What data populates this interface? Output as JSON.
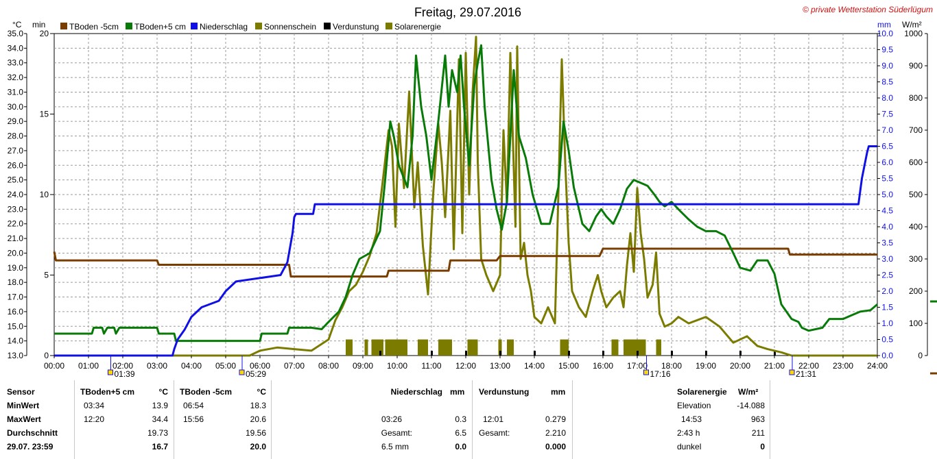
{
  "chart_data": {
    "type": "line",
    "title": "Freitag, 29.07.2016",
    "copyright": "© private Wetterstation Süderlügum",
    "x_range_hours": [
      0,
      24
    ],
    "x_ticks": [
      "00:00",
      "01:00",
      "02:00",
      "03:00",
      "04:00",
      "05:00",
      "06:00",
      "07:00",
      "08:00",
      "09:00",
      "10:00",
      "11:00",
      "12:00",
      "13:00",
      "14:00",
      "15:00",
      "16:00",
      "17:00",
      "18:00",
      "19:00",
      "20:00",
      "21:00",
      "22:00",
      "23:00",
      "24:00"
    ],
    "axes": {
      "temp": {
        "unit": "°C",
        "range": [
          13,
          35
        ],
        "step": 1
      },
      "min": {
        "unit": "min",
        "range": [
          0,
          20
        ],
        "ticks": [
          "0",
          "5",
          "10",
          "15",
          "20"
        ]
      },
      "mm": {
        "unit": "mm",
        "range": [
          0,
          10
        ],
        "step": 0.5
      },
      "wm2": {
        "unit": "W/m²",
        "range": [
          0,
          1000
        ],
        "step": 100
      }
    },
    "grid": true,
    "legend": [
      {
        "name": "TBoden -5cm",
        "color": "#7a3d00"
      },
      {
        "name": "TBoden+5 cm",
        "color": "#087a08"
      },
      {
        "name": "Niederschlag",
        "color": "#1010e6"
      },
      {
        "name": "Sonnenschein",
        "color": "#7b7b00"
      },
      {
        "name": "Verdunstung",
        "color": "#000000"
      },
      {
        "name": "Solarenergie",
        "color": "#7b7b00"
      }
    ],
    "sun_markers": [
      {
        "label": "01:39",
        "hour": 1.65
      },
      {
        "label": "05:29",
        "hour": 5.48
      },
      {
        "label": "17:16",
        "hour": 17.27
      },
      {
        "label": "21:31",
        "hour": 21.52
      }
    ],
    "series": [
      {
        "name": "TBoden -5cm",
        "axis": "temp",
        "color": "#7a3d00",
        "points": [
          [
            0,
            20.1
          ],
          [
            0.05,
            19.5
          ],
          [
            3.0,
            19.5
          ],
          [
            3.05,
            19.2
          ],
          [
            6.85,
            19.2
          ],
          [
            6.9,
            18.4
          ],
          [
            9.7,
            18.4
          ],
          [
            9.75,
            18.8
          ],
          [
            11.5,
            18.8
          ],
          [
            11.55,
            19.5
          ],
          [
            12.9,
            19.5
          ],
          [
            13.0,
            19.8
          ],
          [
            15.9,
            19.8
          ],
          [
            16.0,
            20.3
          ],
          [
            21.4,
            20.3
          ],
          [
            21.45,
            19.9
          ],
          [
            24,
            19.9
          ]
        ]
      },
      {
        "name": "TBoden+5 cm",
        "axis": "temp",
        "color": "#087a08",
        "points": [
          [
            0,
            14.5
          ],
          [
            1.1,
            14.5
          ],
          [
            1.15,
            14.9
          ],
          [
            1.4,
            14.9
          ],
          [
            1.45,
            14.5
          ],
          [
            1.55,
            14.9
          ],
          [
            1.75,
            14.9
          ],
          [
            1.8,
            14.5
          ],
          [
            1.9,
            14.9
          ],
          [
            3.0,
            14.9
          ],
          [
            3.05,
            14.5
          ],
          [
            3.5,
            14.5
          ],
          [
            3.55,
            14.0
          ],
          [
            6.0,
            14.0
          ],
          [
            6.05,
            14.5
          ],
          [
            6.8,
            14.5
          ],
          [
            6.85,
            14.9
          ],
          [
            7.5,
            14.9
          ],
          [
            7.8,
            14.8
          ],
          [
            8.0,
            15.3
          ],
          [
            8.3,
            16.0
          ],
          [
            8.5,
            17.0
          ],
          [
            8.7,
            18.5
          ],
          [
            8.9,
            19.6
          ],
          [
            9.2,
            20.0
          ],
          [
            9.5,
            21.5
          ],
          [
            9.65,
            25.0
          ],
          [
            9.8,
            29.0
          ],
          [
            9.9,
            28.0
          ],
          [
            10.05,
            26.0
          ],
          [
            10.3,
            24.5
          ],
          [
            10.45,
            28.0
          ],
          [
            10.55,
            33.5
          ],
          [
            10.7,
            30.0
          ],
          [
            10.85,
            28.0
          ],
          [
            11.0,
            25.0
          ],
          [
            11.2,
            29.0
          ],
          [
            11.4,
            33.5
          ],
          [
            11.5,
            30.0
          ],
          [
            11.6,
            32.5
          ],
          [
            11.75,
            31.0
          ],
          [
            11.85,
            33.5
          ],
          [
            11.95,
            30.0
          ],
          [
            12.1,
            26.0
          ],
          [
            12.25,
            31.5
          ],
          [
            12.35,
            33.0
          ],
          [
            12.45,
            34.2
          ],
          [
            12.55,
            30.0
          ],
          [
            12.75,
            25.0
          ],
          [
            12.9,
            23.0
          ],
          [
            13.05,
            21.6
          ],
          [
            13.2,
            23.5
          ],
          [
            13.4,
            32.5
          ],
          [
            13.55,
            28.0
          ],
          [
            13.75,
            26.5
          ],
          [
            13.95,
            24.0
          ],
          [
            14.2,
            22.0
          ],
          [
            14.45,
            22.0
          ],
          [
            14.7,
            24.5
          ],
          [
            14.85,
            29.0
          ],
          [
            15.0,
            27.0
          ],
          [
            15.15,
            24.5
          ],
          [
            15.4,
            22.0
          ],
          [
            15.6,
            21.5
          ],
          [
            15.8,
            22.5
          ],
          [
            15.95,
            23.0
          ],
          [
            16.1,
            22.5
          ],
          [
            16.3,
            22.0
          ],
          [
            16.5,
            23.0
          ],
          [
            16.7,
            24.4
          ],
          [
            16.9,
            25.0
          ],
          [
            17.1,
            24.8
          ],
          [
            17.3,
            24.6
          ],
          [
            17.5,
            24.0
          ],
          [
            17.65,
            23.5
          ],
          [
            17.8,
            23.2
          ],
          [
            18.0,
            23.5
          ],
          [
            18.2,
            23.0
          ],
          [
            18.5,
            22.3
          ],
          [
            18.75,
            21.8
          ],
          [
            19.0,
            21.5
          ],
          [
            19.3,
            21.5
          ],
          [
            19.55,
            21.2
          ],
          [
            19.8,
            20.0
          ],
          [
            20.0,
            19.0
          ],
          [
            20.3,
            18.8
          ],
          [
            20.5,
            19.5
          ],
          [
            20.8,
            19.5
          ],
          [
            21.0,
            18.6
          ],
          [
            21.2,
            16.5
          ],
          [
            21.5,
            15.5
          ],
          [
            21.7,
            15.3
          ],
          [
            21.8,
            14.9
          ],
          [
            22.0,
            14.7
          ],
          [
            22.4,
            14.9
          ],
          [
            22.6,
            15.5
          ],
          [
            23.0,
            15.5
          ],
          [
            23.2,
            15.7
          ],
          [
            23.5,
            16.0
          ],
          [
            23.8,
            16.1
          ],
          [
            24.0,
            16.5
          ]
        ]
      },
      {
        "name": "Niederschlag",
        "axis": "mm",
        "color": "#1010e6",
        "points": [
          [
            0,
            0
          ],
          [
            3.45,
            0
          ],
          [
            3.5,
            0.2
          ],
          [
            3.6,
            0.5
          ],
          [
            3.8,
            0.8
          ],
          [
            4.0,
            1.2
          ],
          [
            4.3,
            1.5
          ],
          [
            4.8,
            1.7
          ],
          [
            5.0,
            2.0
          ],
          [
            5.3,
            2.3
          ],
          [
            6.6,
            2.5
          ],
          [
            6.8,
            2.9
          ],
          [
            6.95,
            3.8
          ],
          [
            7.0,
            4.3
          ],
          [
            7.05,
            4.4
          ],
          [
            7.55,
            4.4
          ],
          [
            7.6,
            4.7
          ],
          [
            23.45,
            4.7
          ],
          [
            23.55,
            5.5
          ],
          [
            23.7,
            6.3
          ],
          [
            23.75,
            6.5
          ],
          [
            24,
            6.5
          ]
        ]
      },
      {
        "name": "Solarenergie",
        "axis": "wm2",
        "color": "#7b7b00",
        "points": [
          [
            0,
            0
          ],
          [
            5.7,
            0
          ],
          [
            6.0,
            15
          ],
          [
            6.5,
            25
          ],
          [
            7.0,
            20
          ],
          [
            7.5,
            15
          ],
          [
            8.0,
            50
          ],
          [
            8.2,
            110
          ],
          [
            8.4,
            150
          ],
          [
            8.6,
            200
          ],
          [
            8.8,
            220
          ],
          [
            9.0,
            260
          ],
          [
            9.2,
            310
          ],
          [
            9.4,
            380
          ],
          [
            9.6,
            560
          ],
          [
            9.75,
            700
          ],
          [
            9.85,
            650
          ],
          [
            9.95,
            400
          ],
          [
            10.05,
            720
          ],
          [
            10.2,
            520
          ],
          [
            10.35,
            820
          ],
          [
            10.5,
            460
          ],
          [
            10.6,
            600
          ],
          [
            10.75,
            340
          ],
          [
            10.9,
            190
          ],
          [
            11.05,
            500
          ],
          [
            11.2,
            720
          ],
          [
            11.3,
            600
          ],
          [
            11.4,
            430
          ],
          [
            11.55,
            760
          ],
          [
            11.65,
            330
          ],
          [
            11.8,
            920
          ],
          [
            11.9,
            380
          ],
          [
            12.0,
            940
          ],
          [
            12.1,
            500
          ],
          [
            12.2,
            820
          ],
          [
            12.3,
            990
          ],
          [
            12.35,
            600
          ],
          [
            12.45,
            300
          ],
          [
            12.6,
            250
          ],
          [
            12.8,
            200
          ],
          [
            13.0,
            250
          ],
          [
            13.1,
            700
          ],
          [
            13.2,
            470
          ],
          [
            13.3,
            940
          ],
          [
            13.45,
            400
          ],
          [
            13.5,
            960
          ],
          [
            13.6,
            300
          ],
          [
            13.7,
            350
          ],
          [
            13.8,
            250
          ],
          [
            13.9,
            200
          ],
          [
            14.0,
            120
          ],
          [
            14.2,
            100
          ],
          [
            14.4,
            150
          ],
          [
            14.6,
            100
          ],
          [
            14.7,
            500
          ],
          [
            14.8,
            920
          ],
          [
            14.9,
            600
          ],
          [
            15.0,
            350
          ],
          [
            15.1,
            200
          ],
          [
            15.3,
            150
          ],
          [
            15.5,
            120
          ],
          [
            15.7,
            200
          ],
          [
            15.85,
            250
          ],
          [
            15.95,
            200
          ],
          [
            16.1,
            150
          ],
          [
            16.3,
            180
          ],
          [
            16.5,
            200
          ],
          [
            16.6,
            150
          ],
          [
            16.7,
            280
          ],
          [
            16.8,
            380
          ],
          [
            16.9,
            260
          ],
          [
            17.0,
            520
          ],
          [
            17.1,
            380
          ],
          [
            17.2,
            300
          ],
          [
            17.3,
            180
          ],
          [
            17.45,
            220
          ],
          [
            17.55,
            320
          ],
          [
            17.65,
            130
          ],
          [
            17.8,
            90
          ],
          [
            18.0,
            100
          ],
          [
            18.2,
            120
          ],
          [
            18.5,
            100
          ],
          [
            19.0,
            120
          ],
          [
            19.4,
            90
          ],
          [
            19.8,
            40
          ],
          [
            20.2,
            60
          ],
          [
            20.5,
            30
          ],
          [
            20.8,
            20
          ],
          [
            21.2,
            10
          ],
          [
            21.5,
            0
          ],
          [
            24,
            0
          ]
        ]
      },
      {
        "name": "Sonnenschein",
        "axis": "min",
        "bars": [
          [
            8.5,
            8.7
          ],
          [
            9.05,
            9.15
          ],
          [
            9.25,
            9.6
          ],
          [
            9.65,
            10.3
          ],
          [
            10.6,
            10.9
          ],
          [
            11.2,
            11.6
          ],
          [
            12.05,
            12.35
          ],
          [
            12.95,
            13.05
          ],
          [
            13.2,
            13.4
          ],
          [
            14.75,
            15.0
          ],
          [
            16.25,
            16.45
          ],
          [
            16.6,
            17.25
          ],
          [
            17.55,
            17.7
          ]
        ],
        "value": 1
      },
      {
        "name": "Verdunstung",
        "axis": "mm",
        "color": "#000000",
        "ticks_hours": [
          9.5,
          11.0,
          12.0,
          13.0,
          14.0,
          15.0,
          16.0,
          17.0,
          18.0,
          19.0,
          20.0,
          21.0
        ]
      }
    ]
  },
  "table": {
    "col1": {
      "r1": "Sensor",
      "r2": "MinWert",
      "r3": "MaxWert",
      "r4": "Durchschnitt",
      "r5": "29.07. 23:59"
    },
    "tb5": {
      "head": "TBoden+5 cm",
      "unit": "°C",
      "min_time": "03:34",
      "min": "13.9",
      "max_time": "12:20",
      "max": "34.4",
      "avg": "19.73",
      "last": "16.7"
    },
    "tbm5": {
      "head": "TBoden -5cm",
      "unit": "°C",
      "min_time": "06:54",
      "min": "18.3",
      "max_time": "15:56",
      "max": "20.6",
      "avg": "19.56",
      "last": "20.0"
    },
    "nied": {
      "head": "Niederschlag",
      "unit": "mm",
      "max_time": "03:26",
      "max": "0.3",
      "sum_label": "Gesamt:",
      "sum": "6.5",
      "last_label": "6.5 mm",
      "last": "0.0"
    },
    "verd": {
      "head": "Verdunstung",
      "unit": "mm",
      "max_time": "12:01",
      "max": "0.279",
      "sum_label": "Gesamt:",
      "sum": "2.210",
      "last": "0.000"
    },
    "solar": {
      "head": "Solarenergie",
      "unit": "W/m²",
      "elev_label": "Elevation",
      "elev": "-14.088",
      "max_time": "14:53",
      "max": "963",
      "dur": "2:43 h",
      "dur_val": "211",
      "dark_label": "dunkel",
      "dark": "0"
    }
  }
}
